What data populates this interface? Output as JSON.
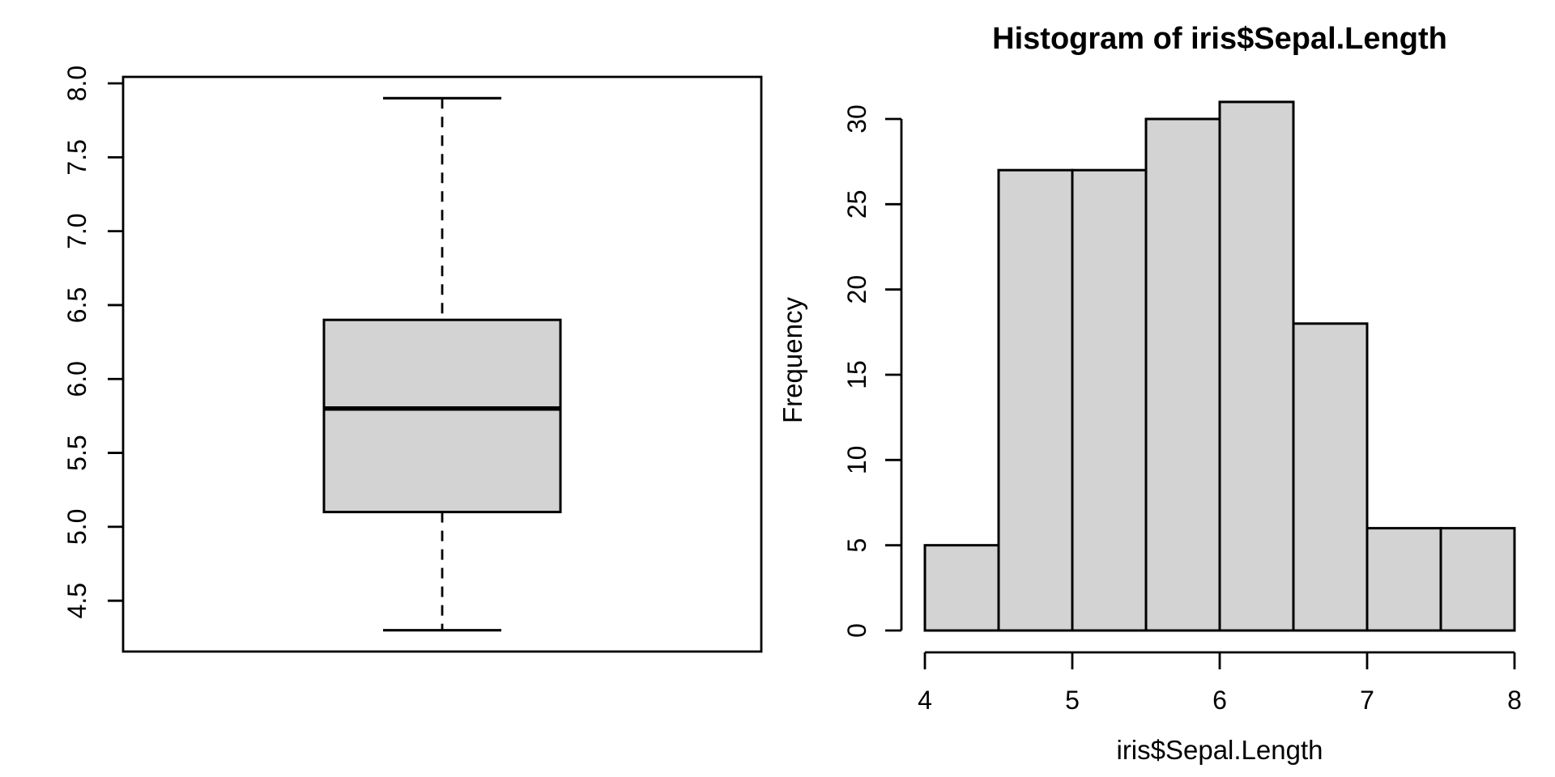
{
  "figure": {
    "background": "#ffffff",
    "line_color": "#000000",
    "text_color": "#000000",
    "panel_fill": "#d3d3d3"
  },
  "chart_data": [
    {
      "type": "boxplot",
      "orientation": "vertical",
      "variable": "iris$Sepal.Length",
      "title": "",
      "xlabel": "",
      "ylabel": "",
      "stats": {
        "min": 4.3,
        "q1": 5.1,
        "median": 5.8,
        "q3": 6.4,
        "max": 7.9
      },
      "outliers": [],
      "ylim": [
        4.156,
        8.044
      ],
      "yticks": [
        4.5,
        5.0,
        5.5,
        6.0,
        6.5,
        7.0,
        7.5,
        8.0
      ],
      "ytick_labels": [
        "4.5",
        "5.0",
        "5.5",
        "6.0",
        "6.5",
        "7.0",
        "7.5",
        "8.0"
      ],
      "grid": false,
      "legend": false,
      "frame": true,
      "box_fill": "#d3d3d3",
      "whisker_style": "dashed"
    },
    {
      "type": "histogram",
      "title": "Histogram of iris$Sepal.Length",
      "xlabel": "iris$Sepal.Length",
      "ylabel": "Frequency",
      "breaks": [
        4.0,
        4.5,
        5.0,
        5.5,
        6.0,
        6.5,
        7.0,
        7.5,
        8.0
      ],
      "counts": [
        5,
        27,
        27,
        30,
        31,
        18,
        6,
        6
      ],
      "xlim": [
        4,
        8
      ],
      "ylim": [
        0,
        31
      ],
      "xticks": [
        4,
        5,
        6,
        7,
        8
      ],
      "xtick_labels": [
        "4",
        "5",
        "6",
        "7",
        "8"
      ],
      "yticks": [
        0,
        5,
        10,
        15,
        20,
        25,
        30
      ],
      "ytick_labels": [
        "0",
        "5",
        "10",
        "15",
        "20",
        "25",
        "30"
      ],
      "grid": false,
      "legend": false,
      "bar_fill": "#d3d3d3"
    }
  ]
}
